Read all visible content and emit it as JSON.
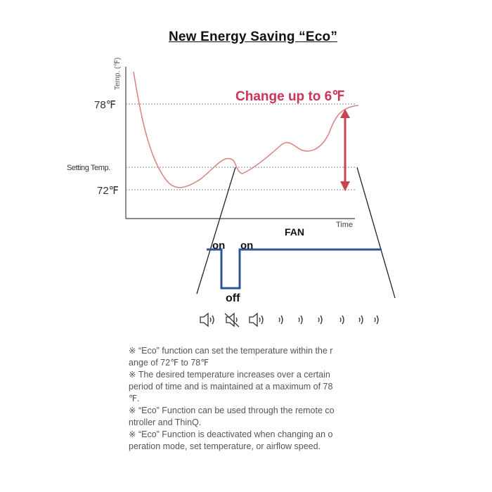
{
  "title": "New Energy Saving “Eco”",
  "chart": {
    "y_axis_label": "Temp. (℉)",
    "x_axis_label": "Time",
    "label_78": "78℉",
    "label_setting": "Setting Temp.",
    "label_72": "72℉",
    "change_label": "Change up to 6℉"
  },
  "fan": {
    "title": "FAN",
    "on_label_1": "on",
    "on_label_2": "on",
    "off_label": "off",
    "speaker_states": [
      "speaker-on-icon",
      "speaker-muted-icon",
      "speaker-on-icon",
      "wave-icon",
      "wave-icon",
      "wave-icon",
      "wave-icon",
      "wave-icon",
      "wave-icon"
    ]
  },
  "colors": {
    "temp_line": "#d98080",
    "accent": "#cc3355",
    "arrow": "#c94450",
    "fan_line": "#2f5597"
  },
  "notes": [
    "※ “Eco” function can set the temperature within the r",
    "ange of 72℉ to 78℉",
    "※ The desired temperature increases over a certain",
    "period of time and is maintained at a maximum of 78",
    "℉.",
    "※ “Eco” Function can be used through the remote co",
    "ntroller and ThinQ.",
    "※ “Eco” Function is deactivated when changing an o",
    "peration mode, set temperature, or airflow speed."
  ]
}
